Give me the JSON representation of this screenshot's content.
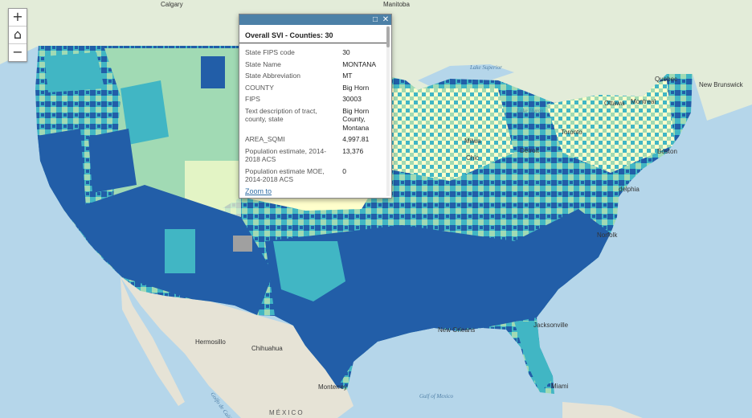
{
  "map": {
    "cities": {
      "calgary": "Calgary",
      "ottawa": "Ottawa",
      "montreal": "Montreal",
      "quebec": "Quebec",
      "toronto": "Toronto",
      "detroit": "Detroit",
      "chicago": "Chic",
      "milwaukee": "Milwa",
      "boston": "Boston",
      "philadelphia": "delphia",
      "norfolk": "Norfolk",
      "jacksonville": "Jacksonville",
      "miami": "Miami",
      "neworleans": "New Orleans",
      "hermosillo": "Hermosillo",
      "chihuahua": "Chihuahua",
      "monterrey": "Monterrey"
    },
    "regions": {
      "manitoba": "Manitoba",
      "newbrunswick": "New Brunswick",
      "mexico": "MÉXICO"
    },
    "water": {
      "lake_superior": "Lake Superior",
      "lake_huron": "Lake Huron",
      "gulf_of_mexico": "Gulf of Mexico",
      "gulf_of_california": "Golfo de California"
    },
    "palette": {
      "class1": "#ffffcc",
      "class2": "#a1dab4",
      "class3": "#41b6c4",
      "class4": "#225ea8",
      "selected": "#a0a0a0"
    }
  },
  "zoom": {
    "in": "+",
    "home": "⌂",
    "out": "−"
  },
  "popup": {
    "title": "Overall SVI - Counties: 30",
    "maximize": "□",
    "close": "✕",
    "rows": [
      {
        "name": "State FIPS code",
        "value": "30"
      },
      {
        "name": "State Name",
        "value": "MONTANA"
      },
      {
        "name": "State Abbreviation",
        "value": "MT"
      },
      {
        "name": "COUNTY",
        "value": "Big Horn"
      },
      {
        "name": "FIPS",
        "value": "30003"
      },
      {
        "name": "Text description of tract, county, state",
        "value": "Big Horn County, Montana"
      },
      {
        "name": "AREA_SQMI",
        "value": "4,997.81"
      },
      {
        "name": "Population estimate, 2014-2018 ACS",
        "value": "13,376"
      },
      {
        "name": "Population estimate MOE, 2014-2018 ACS",
        "value": "0"
      }
    ],
    "zoom_to": "Zoom to"
  }
}
